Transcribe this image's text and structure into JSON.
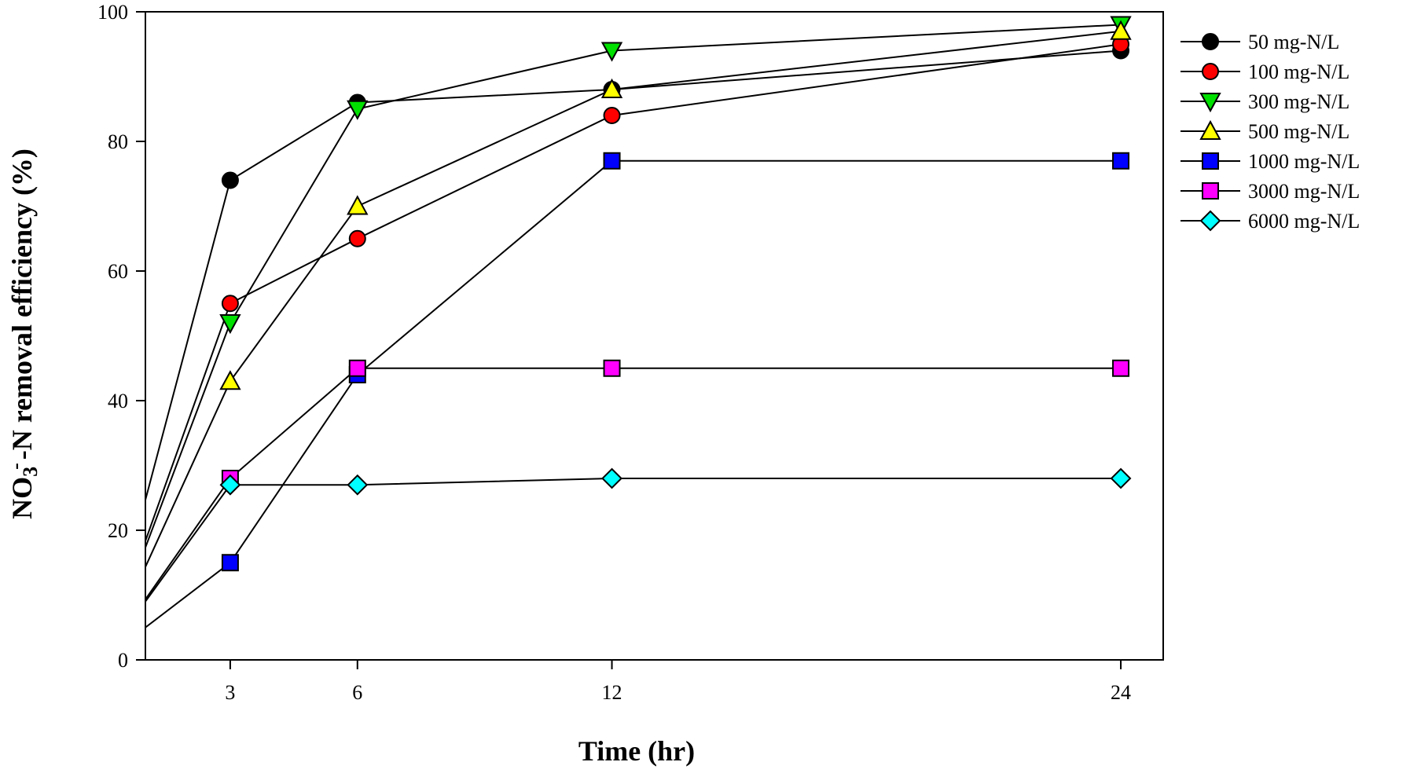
{
  "chart_data": {
    "type": "line",
    "xlabel": "Time (hr)",
    "ylabel": {
      "main": "NO",
      "sub": "3",
      "sup": "-",
      "rest": "-N removal efficiency (%)"
    },
    "xlim": [
      1,
      25
    ],
    "ylim": [
      0,
      100
    ],
    "x_ticks": [
      3,
      6,
      12,
      24
    ],
    "y_ticks": [
      0,
      20,
      40,
      60,
      80,
      100
    ],
    "grid": false,
    "legend_position": "right",
    "series": [
      {
        "name": "50 mg-N/L",
        "marker": "circle",
        "color": "#000000",
        "points": [
          [
            0,
            0
          ],
          [
            3,
            74
          ],
          [
            6,
            86
          ],
          [
            12,
            88
          ],
          [
            24,
            94
          ]
        ]
      },
      {
        "name": "100 mg-N/L",
        "marker": "circle",
        "color": "#ff0000",
        "points": [
          [
            0,
            0
          ],
          [
            3,
            55
          ],
          [
            6,
            65
          ],
          [
            12,
            84
          ],
          [
            24,
            95
          ]
        ]
      },
      {
        "name": "300 mg-N/L",
        "marker": "triangle-down",
        "color": "#00e000",
        "points": [
          [
            0,
            0
          ],
          [
            3,
            52
          ],
          [
            6,
            85
          ],
          [
            12,
            94
          ],
          [
            24,
            98
          ]
        ]
      },
      {
        "name": "500 mg-N/L",
        "marker": "triangle-up",
        "color": "#ffff00",
        "points": [
          [
            0,
            0
          ],
          [
            3,
            43
          ],
          [
            6,
            70
          ],
          [
            12,
            88
          ],
          [
            24,
            97
          ]
        ]
      },
      {
        "name": "1000 mg-N/L",
        "marker": "square",
        "color": "#0000ff",
        "points": [
          [
            0,
            0
          ],
          [
            3,
            15
          ],
          [
            6,
            44
          ],
          [
            12,
            77
          ],
          [
            24,
            77
          ]
        ]
      },
      {
        "name": "3000 mg-N/L",
        "marker": "square",
        "color": "#ff00ff",
        "points": [
          [
            0,
            0
          ],
          [
            3,
            28
          ],
          [
            6,
            45
          ],
          [
            12,
            45
          ],
          [
            24,
            45
          ]
        ]
      },
      {
        "name": "6000 mg-N/L",
        "marker": "diamond",
        "color": "#00ffff",
        "points": [
          [
            0,
            0
          ],
          [
            3,
            27
          ],
          [
            6,
            27
          ],
          [
            12,
            28
          ],
          [
            24,
            28
          ]
        ]
      }
    ]
  }
}
